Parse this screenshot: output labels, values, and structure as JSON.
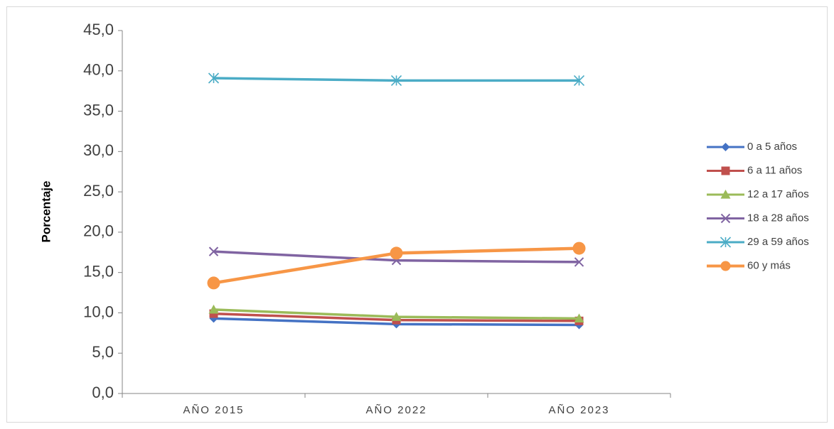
{
  "chart_data": {
    "type": "line",
    "title": "",
    "xlabel": "",
    "ylabel": "Porcentaje",
    "categories": [
      "AÑO 2015",
      "AÑO 2022",
      "AÑO 2023"
    ],
    "ylim": [
      0,
      45
    ],
    "yticks": [
      "0,0",
      "5,0",
      "10,0",
      "15,0",
      "20,0",
      "25,0",
      "30,0",
      "35,0",
      "40,0",
      "45,0"
    ],
    "grid": false,
    "legend_position": "right",
    "series": [
      {
        "name": "0 a 5 años",
        "values": [
          9.3,
          8.6,
          8.5
        ],
        "color": "#4472c4",
        "marker": "diamond"
      },
      {
        "name": "6 a 11 años",
        "values": [
          9.9,
          9.1,
          9.0
        ],
        "color": "#c0504d",
        "marker": "square"
      },
      {
        "name": "12 a 17 años",
        "values": [
          10.4,
          9.5,
          9.3
        ],
        "color": "#9bbb59",
        "marker": "triangle"
      },
      {
        "name": "18 a 28 años",
        "values": [
          17.6,
          16.5,
          16.3
        ],
        "color": "#8064a2",
        "marker": "x"
      },
      {
        "name": "29 a 59 años",
        "values": [
          39.1,
          38.8,
          38.8
        ],
        "color": "#4bacc6",
        "marker": "star"
      },
      {
        "name": "60 y más",
        "values": [
          13.7,
          17.4,
          18.0
        ],
        "color": "#f79646",
        "marker": "circle"
      }
    ]
  }
}
